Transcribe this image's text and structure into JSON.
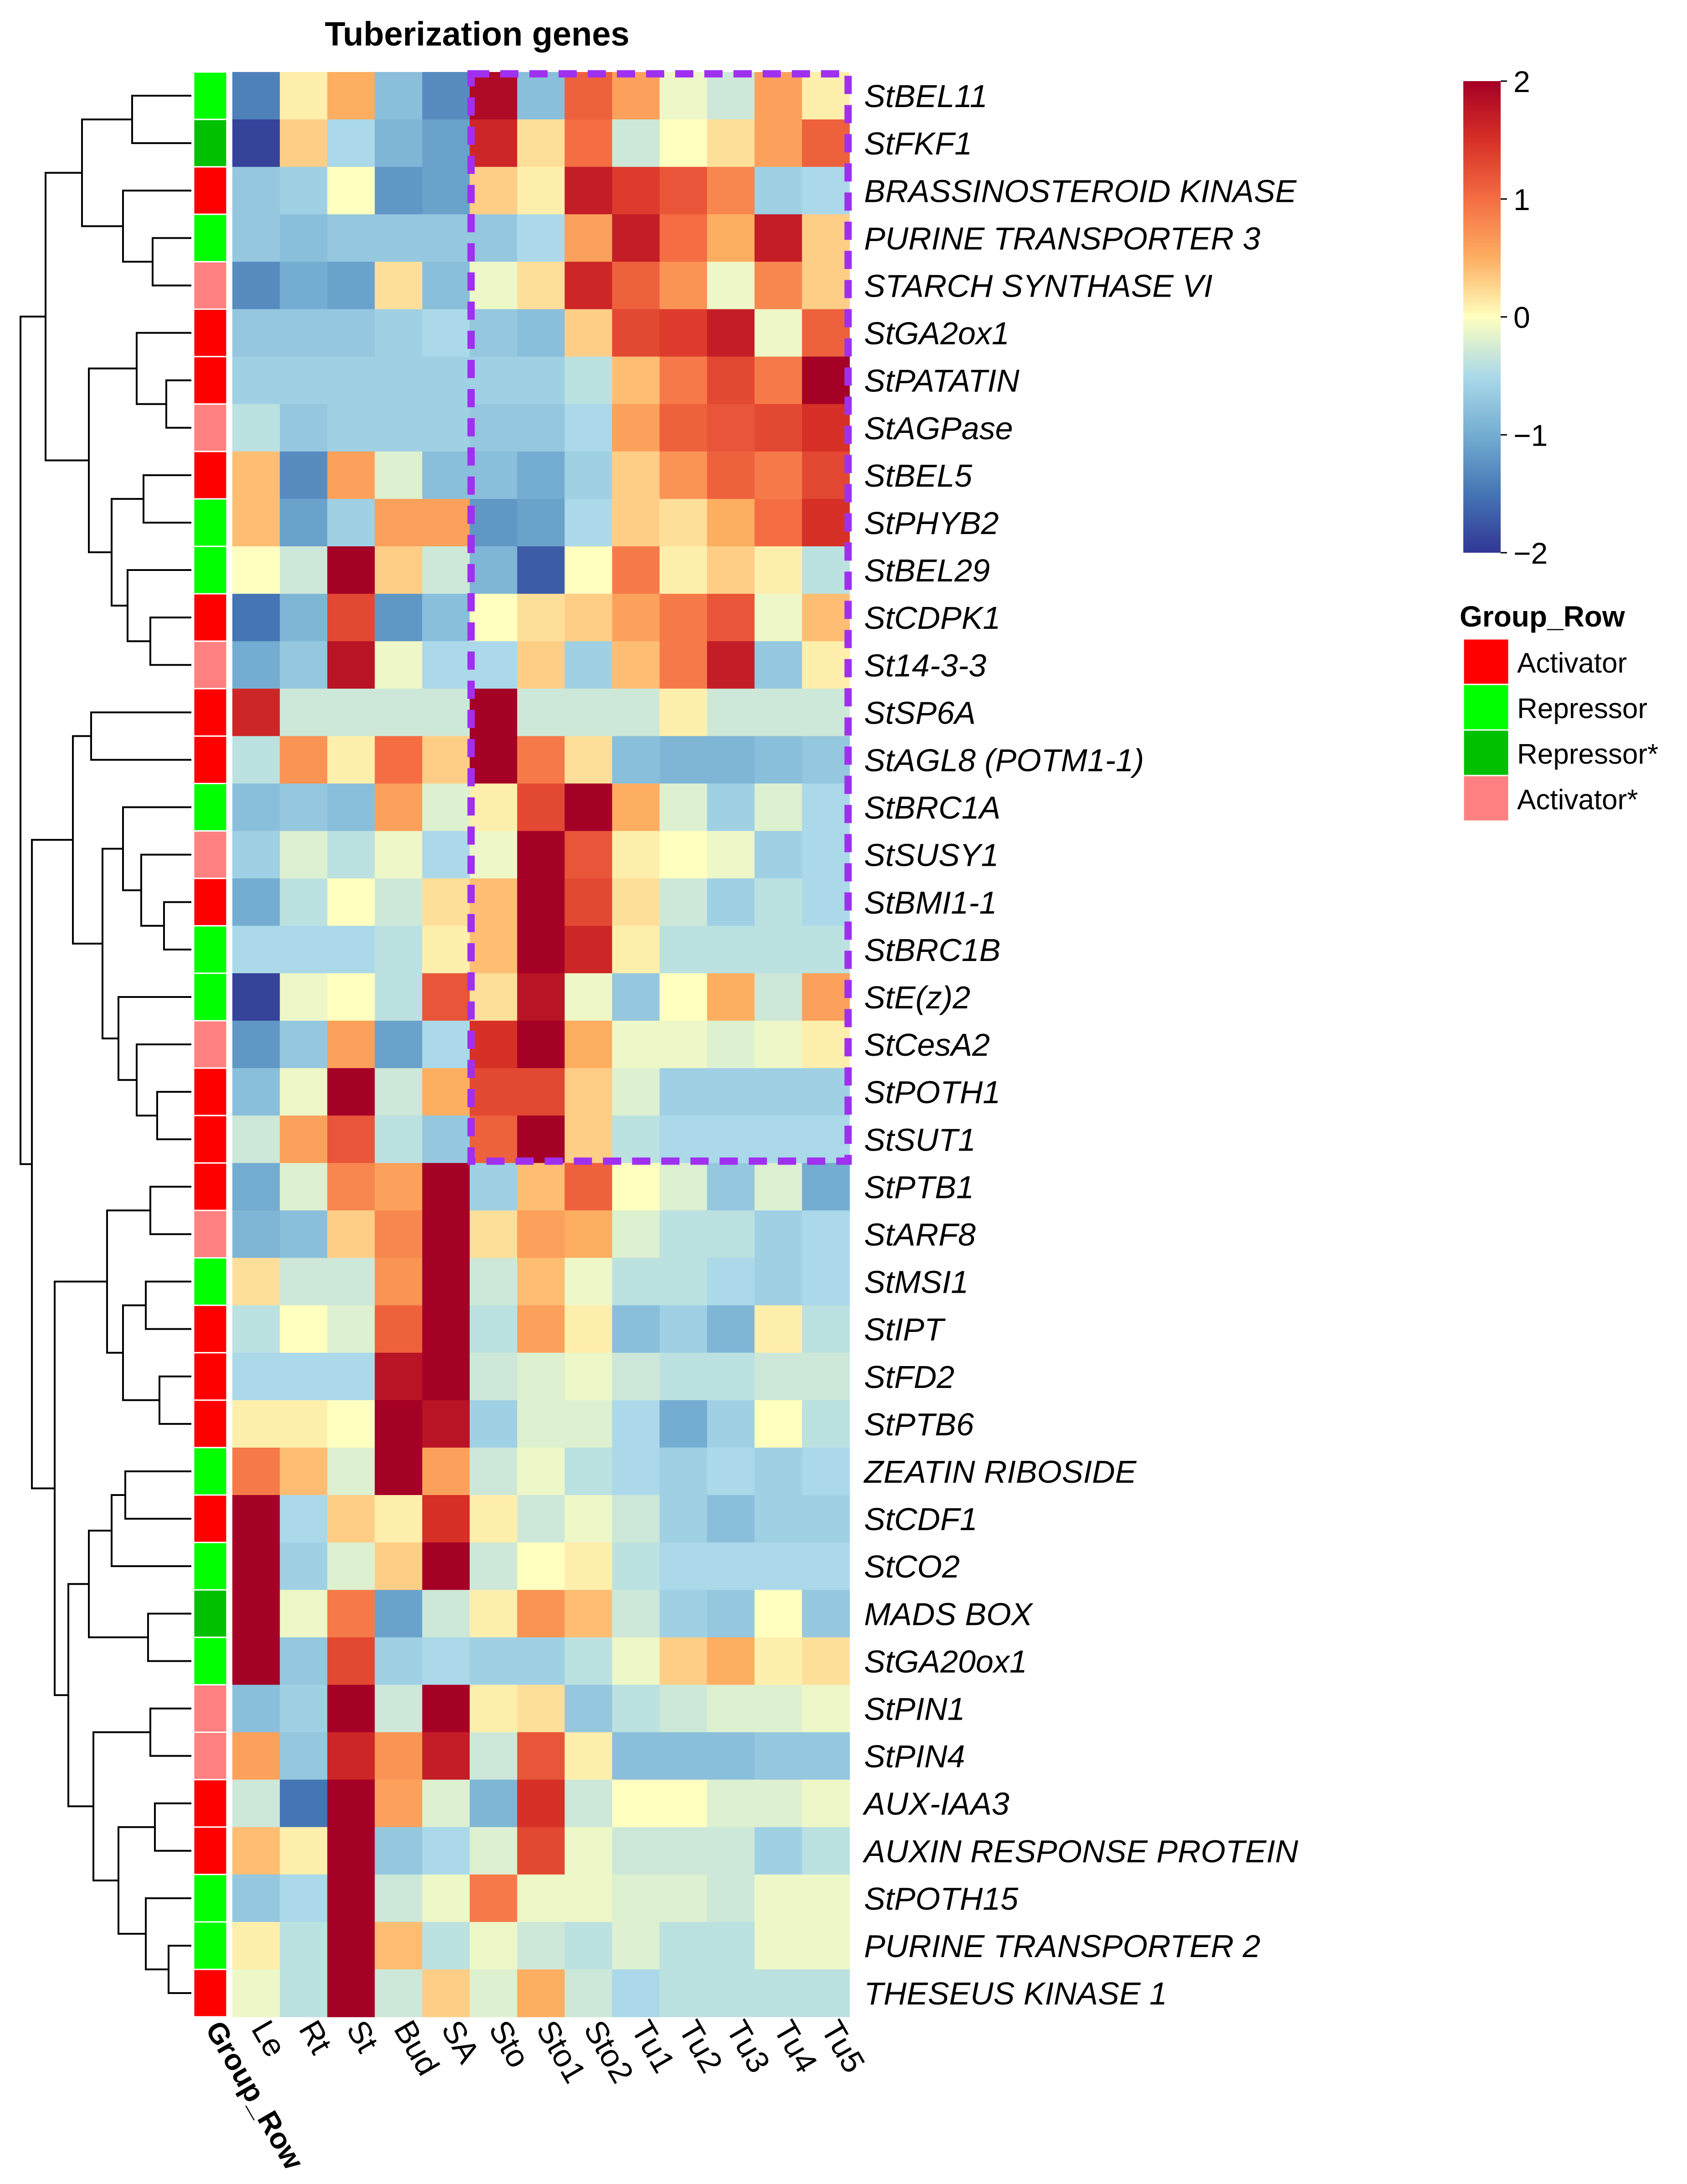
{
  "chart_data": {
    "type": "heatmap",
    "title": "Tuberization genes",
    "columns": [
      "Le",
      "Rt",
      "St",
      "Bud",
      "SA",
      "Sto",
      "Sto1",
      "Sto2",
      "Tu1",
      "Tu2",
      "Tu3",
      "Tu4",
      "Tu5"
    ],
    "annotation_column_label": "Group_Row",
    "rows": [
      {
        "gene": "StBEL11",
        "group": "Repressor",
        "values": [
          -1.4,
          0.1,
          0.5,
          -0.8,
          -1.3,
          1.9,
          -0.8,
          1.1,
          0.6,
          -0.1,
          -0.3,
          0.6,
          0.1
        ]
      },
      {
        "gene": "StFKF1",
        "group": "Repressor*",
        "values": [
          -1.9,
          0.3,
          -0.5,
          -0.9,
          -1.1,
          1.6,
          0.2,
          1.0,
          -0.3,
          0.0,
          0.2,
          0.6,
          1.1
        ]
      },
      {
        "gene": "BRASSINOSTEROID KINASE",
        "group": "Activator",
        "values": [
          -0.7,
          -0.6,
          0.0,
          -1.2,
          -1.1,
          0.3,
          0.1,
          1.7,
          1.4,
          1.2,
          0.8,
          -0.6,
          -0.5
        ]
      },
      {
        "gene": "PURINE TRANSPORTER 3",
        "group": "Repressor",
        "values": [
          -0.7,
          -0.8,
          -0.7,
          -0.7,
          -0.7,
          -0.7,
          -0.5,
          0.6,
          1.7,
          1.0,
          0.5,
          1.7,
          0.3
        ]
      },
      {
        "gene": "STARCH SYNTHASE VI",
        "group": "Activator*",
        "values": [
          -1.3,
          -1.0,
          -1.1,
          0.2,
          -0.8,
          -0.1,
          0.2,
          1.6,
          1.1,
          0.7,
          -0.1,
          0.8,
          0.3
        ]
      },
      {
        "gene": "StGA2ox1",
        "group": "Activator",
        "values": [
          -0.7,
          -0.7,
          -0.7,
          -0.6,
          -0.5,
          -0.7,
          -0.8,
          0.3,
          1.3,
          1.4,
          1.7,
          -0.1,
          1.1
        ]
      },
      {
        "gene": "StPATATIN",
        "group": "Activator",
        "values": [
          -0.6,
          -0.6,
          -0.6,
          -0.6,
          -0.6,
          -0.6,
          -0.6,
          -0.4,
          0.4,
          0.9,
          1.3,
          0.9,
          2.0
        ]
      },
      {
        "gene": "StAGPase",
        "group": "Activator*",
        "values": [
          -0.4,
          -0.7,
          -0.6,
          -0.6,
          -0.6,
          -0.7,
          -0.7,
          -0.5,
          0.6,
          1.1,
          1.2,
          1.3,
          1.5
        ]
      },
      {
        "gene": "StBEL5",
        "group": "Activator",
        "values": [
          0.4,
          -1.3,
          0.6,
          -0.2,
          -0.8,
          -0.8,
          -1.0,
          -0.6,
          0.3,
          0.7,
          1.1,
          0.9,
          1.3
        ]
      },
      {
        "gene": "StPHYB2",
        "group": "Repressor",
        "values": [
          0.4,
          -1.1,
          -0.6,
          0.6,
          0.6,
          -1.2,
          -1.1,
          -0.5,
          0.3,
          0.2,
          0.5,
          1.0,
          1.5
        ]
      },
      {
        "gene": "StBEL29",
        "group": "Repressor",
        "values": [
          0.0,
          -0.3,
          2.0,
          0.3,
          -0.3,
          -0.9,
          -1.7,
          0.0,
          0.9,
          0.1,
          0.3,
          0.1,
          -0.4
        ]
      },
      {
        "gene": "StCDPK1",
        "group": "Activator",
        "values": [
          -1.5,
          -0.9,
          1.3,
          -1.2,
          -0.8,
          0.0,
          0.2,
          0.3,
          0.6,
          0.9,
          1.2,
          -0.1,
          0.4
        ]
      },
      {
        "gene": "St14-3-3",
        "group": "Activator*",
        "values": [
          -1.0,
          -0.7,
          1.8,
          -0.1,
          -0.5,
          -0.5,
          0.3,
          -0.6,
          0.4,
          0.9,
          1.7,
          -0.7,
          0.1
        ]
      },
      {
        "gene": "StSP6A",
        "group": "Activator",
        "values": [
          1.6,
          -0.3,
          -0.3,
          -0.3,
          -0.3,
          2.0,
          -0.3,
          -0.3,
          -0.3,
          0.1,
          -0.3,
          -0.3,
          -0.3
        ]
      },
      {
        "gene": "StAGL8 (POTM1-1)",
        "group": "Activator",
        "values": [
          -0.4,
          0.7,
          0.1,
          1.0,
          0.3,
          2.0,
          0.9,
          0.2,
          -0.8,
          -0.9,
          -0.9,
          -0.8,
          -0.7
        ]
      },
      {
        "gene": "StBRC1A",
        "group": "Repressor",
        "values": [
          -0.8,
          -0.7,
          -0.8,
          0.6,
          -0.2,
          0.1,
          1.3,
          2.0,
          0.5,
          -0.2,
          -0.6,
          -0.2,
          -0.5
        ]
      },
      {
        "gene": "StSUSY1",
        "group": "Activator*",
        "values": [
          -0.6,
          -0.2,
          -0.4,
          -0.1,
          -0.5,
          -0.1,
          2.0,
          1.2,
          0.1,
          0.0,
          -0.1,
          -0.6,
          -0.5
        ]
      },
      {
        "gene": "StBMI1-1",
        "group": "Activator",
        "values": [
          -1.0,
          -0.4,
          0.0,
          -0.3,
          0.2,
          0.4,
          2.0,
          1.3,
          0.2,
          -0.3,
          -0.6,
          -0.4,
          -0.5
        ]
      },
      {
        "gene": "StBRC1B",
        "group": "Repressor",
        "values": [
          -0.5,
          -0.5,
          -0.5,
          -0.4,
          0.1,
          0.4,
          2.0,
          1.6,
          0.1,
          -0.4,
          -0.4,
          -0.4,
          -0.4
        ]
      },
      {
        "gene": "StE(z)2",
        "group": "Repressor",
        "values": [
          -1.9,
          -0.1,
          0.0,
          -0.4,
          1.2,
          0.2,
          1.8,
          -0.1,
          -0.7,
          0.0,
          0.5,
          -0.3,
          0.6
        ]
      },
      {
        "gene": "StCesA2",
        "group": "Activator*",
        "values": [
          -1.2,
          -0.7,
          0.6,
          -1.1,
          -0.5,
          1.5,
          2.0,
          0.5,
          -0.1,
          -0.1,
          -0.2,
          -0.1,
          0.1
        ]
      },
      {
        "gene": "StPOTH1",
        "group": "Activator",
        "values": [
          -0.8,
          -0.1,
          2.0,
          -0.3,
          0.5,
          1.3,
          1.3,
          0.3,
          -0.2,
          -0.6,
          -0.6,
          -0.6,
          -0.6
        ]
      },
      {
        "gene": "StSUT1",
        "group": "Activator",
        "values": [
          -0.3,
          0.6,
          1.2,
          -0.4,
          -0.7,
          1.1,
          2.0,
          0.3,
          -0.4,
          -0.5,
          -0.5,
          -0.5,
          -0.5
        ]
      },
      {
        "gene": "StPTB1",
        "group": "Activator",
        "values": [
          -1.0,
          -0.2,
          0.8,
          0.6,
          2.0,
          -0.6,
          0.4,
          1.1,
          0.0,
          -0.2,
          -0.7,
          -0.2,
          -1.0
        ]
      },
      {
        "gene": "StARF8",
        "group": "Activator*",
        "values": [
          -0.9,
          -0.8,
          0.3,
          0.8,
          2.0,
          0.2,
          0.6,
          0.5,
          -0.2,
          -0.4,
          -0.4,
          -0.6,
          -0.5
        ]
      },
      {
        "gene": "StMSI1",
        "group": "Repressor",
        "values": [
          0.2,
          -0.3,
          -0.3,
          0.7,
          2.0,
          -0.3,
          0.4,
          -0.1,
          -0.4,
          -0.4,
          -0.5,
          -0.6,
          -0.5
        ]
      },
      {
        "gene": "StIPT",
        "group": "Activator",
        "values": [
          -0.4,
          0.0,
          -0.2,
          1.1,
          2.0,
          -0.4,
          0.6,
          0.1,
          -0.8,
          -0.6,
          -0.9,
          0.1,
          -0.4
        ]
      },
      {
        "gene": "StFD2",
        "group": "Activator",
        "values": [
          -0.5,
          -0.5,
          -0.5,
          1.8,
          2.0,
          -0.3,
          -0.2,
          -0.1,
          -0.3,
          -0.4,
          -0.4,
          -0.3,
          -0.3
        ]
      },
      {
        "gene": "StPTB6",
        "group": "Activator",
        "values": [
          0.1,
          0.1,
          0.0,
          2.0,
          1.8,
          -0.6,
          -0.2,
          -0.2,
          -0.5,
          -1.0,
          -0.6,
          0.0,
          -0.4
        ]
      },
      {
        "gene": "ZEATIN RIBOSIDE",
        "group": "Repressor",
        "values": [
          0.9,
          0.4,
          -0.2,
          2.0,
          0.6,
          -0.3,
          -0.1,
          -0.4,
          -0.5,
          -0.6,
          -0.5,
          -0.6,
          -0.5
        ]
      },
      {
        "gene": "StCDF1",
        "group": "Activator",
        "values": [
          2.0,
          -0.5,
          0.3,
          0.1,
          1.5,
          0.1,
          -0.3,
          -0.1,
          -0.3,
          -0.6,
          -0.8,
          -0.6,
          -0.6
        ]
      },
      {
        "gene": "StCO2",
        "group": "Repressor",
        "values": [
          2.0,
          -0.6,
          -0.2,
          0.3,
          2.0,
          -0.3,
          0.0,
          0.1,
          -0.4,
          -0.5,
          -0.5,
          -0.5,
          -0.5
        ]
      },
      {
        "gene": "MADS BOX",
        "group": "Repressor*",
        "values": [
          2.0,
          -0.1,
          0.9,
          -1.1,
          -0.3,
          0.1,
          0.7,
          0.4,
          -0.3,
          -0.6,
          -0.7,
          0.0,
          -0.7
        ]
      },
      {
        "gene": "StGA20ox1",
        "group": "Repressor",
        "values": [
          2.0,
          -0.7,
          1.3,
          -0.6,
          -0.5,
          -0.6,
          -0.6,
          -0.4,
          -0.1,
          0.3,
          0.5,
          0.1,
          0.2
        ]
      },
      {
        "gene": "StPIN1",
        "group": "Activator*",
        "values": [
          -0.8,
          -0.6,
          2.0,
          -0.3,
          2.0,
          0.1,
          0.2,
          -0.7,
          -0.4,
          -0.3,
          -0.2,
          -0.2,
          -0.1
        ]
      },
      {
        "gene": "StPIN4",
        "group": "Activator*",
        "values": [
          0.6,
          -0.7,
          1.6,
          0.7,
          1.7,
          -0.3,
          1.2,
          0.1,
          -0.8,
          -0.8,
          -0.8,
          -0.7,
          -0.7
        ]
      },
      {
        "gene": "AUX-IAA3",
        "group": "Activator",
        "values": [
          -0.3,
          -1.5,
          2.0,
          0.6,
          -0.2,
          -0.9,
          1.5,
          -0.3,
          0.0,
          0.0,
          -0.2,
          -0.2,
          -0.1
        ]
      },
      {
        "gene": "AUXIN RESPONSE PROTEIN",
        "group": "Activator",
        "values": [
          0.4,
          0.1,
          2.0,
          -0.7,
          -0.5,
          -0.2,
          1.3,
          -0.1,
          -0.3,
          -0.3,
          -0.3,
          -0.6,
          -0.4
        ]
      },
      {
        "gene": "StPOTH15",
        "group": "Repressor",
        "values": [
          -0.7,
          -0.5,
          2.0,
          -0.3,
          -0.1,
          0.9,
          -0.1,
          -0.1,
          -0.2,
          -0.2,
          -0.3,
          -0.1,
          -0.1
        ]
      },
      {
        "gene": "PURINE TRANSPORTER 2",
        "group": "Repressor",
        "values": [
          0.1,
          -0.4,
          2.0,
          0.4,
          -0.4,
          -0.1,
          -0.3,
          -0.4,
          -0.2,
          -0.4,
          -0.4,
          -0.1,
          -0.1
        ]
      },
      {
        "gene": "THESEUS KINASE 1",
        "group": "Activator",
        "values": [
          -0.1,
          -0.4,
          2.0,
          -0.3,
          0.3,
          -0.2,
          0.5,
          -0.3,
          -0.5,
          -0.4,
          -0.4,
          -0.4,
          -0.4
        ]
      }
    ],
    "color_scale": {
      "range": [
        -2,
        2
      ],
      "ticks": [
        "2",
        "1",
        "0",
        "−1",
        "−2"
      ],
      "tick_values": [
        2,
        1,
        0,
        -1,
        -2
      ],
      "stops": [
        {
          "value": -2,
          "color": "#313695"
        },
        {
          "value": -1.5,
          "color": "#4575b4"
        },
        {
          "value": -1,
          "color": "#74add1"
        },
        {
          "value": -0.5,
          "color": "#abd9e9"
        },
        {
          "value": 0,
          "color": "#ffffbf"
        },
        {
          "value": 0.5,
          "color": "#fdae61"
        },
        {
          "value": 1,
          "color": "#f46d43"
        },
        {
          "value": 1.5,
          "color": "#d73027"
        },
        {
          "value": 2,
          "color": "#a50026"
        }
      ]
    },
    "legend": {
      "title": "Group_Row",
      "items": [
        {
          "label": "Activator",
          "color": "#ff0000"
        },
        {
          "label": "Repressor",
          "color": "#00ff00"
        },
        {
          "label": "Repressor*",
          "color": "#00c000"
        },
        {
          "label": "Activator*",
          "color": "#ff8080"
        }
      ]
    },
    "highlight_box": {
      "columns": [
        "Sto",
        "Tu5"
      ],
      "rows": [
        "StBEL11",
        "StSUT1"
      ],
      "color": "#a030f0",
      "style": "dashed"
    },
    "dendrogram": "row clustering tree on left",
    "row_label_style": "italic"
  }
}
